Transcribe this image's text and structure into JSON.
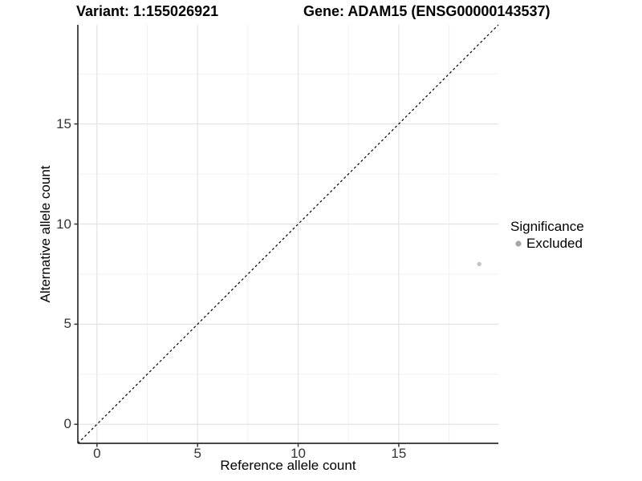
{
  "chart_data": {
    "type": "scatter",
    "titles": {
      "left": "Variant: 1:155026921",
      "right": "Gene: ADAM15 (ENSG00000143537)"
    },
    "xlabel": "Reference allele count",
    "ylabel": "Alternative allele count",
    "xlim": [
      -0.95,
      19.95
    ],
    "ylim": [
      -0.95,
      19.95
    ],
    "x_ticks": [
      0,
      5,
      10,
      15
    ],
    "y_ticks": [
      0,
      5,
      10,
      15
    ],
    "x_minor_ticks": [
      2.5,
      7.5,
      12.5,
      17.5
    ],
    "y_minor_ticks": [
      2.5,
      7.5,
      12.5,
      17.5
    ],
    "grid": true,
    "legend_position": "right",
    "reference_line": {
      "slope": 1,
      "intercept": 0,
      "style": "dashed",
      "color": "#000000"
    },
    "series": [
      {
        "name": "Excluded",
        "color": "#c4c4c4",
        "points": [
          {
            "x": 19,
            "y": 8
          }
        ]
      }
    ],
    "legend": {
      "title": "Significance",
      "entries": [
        {
          "label": "Excluded",
          "color": "#a6a6a6"
        }
      ]
    },
    "colors": {
      "background": "#ffffff",
      "axis_line": "#2e2e2e",
      "tick_mark": "#333333",
      "tick_label": "#333333",
      "major_grid": "#e3e3e3",
      "minor_grid": "#f1f1f1",
      "title_text": "#000000"
    }
  }
}
